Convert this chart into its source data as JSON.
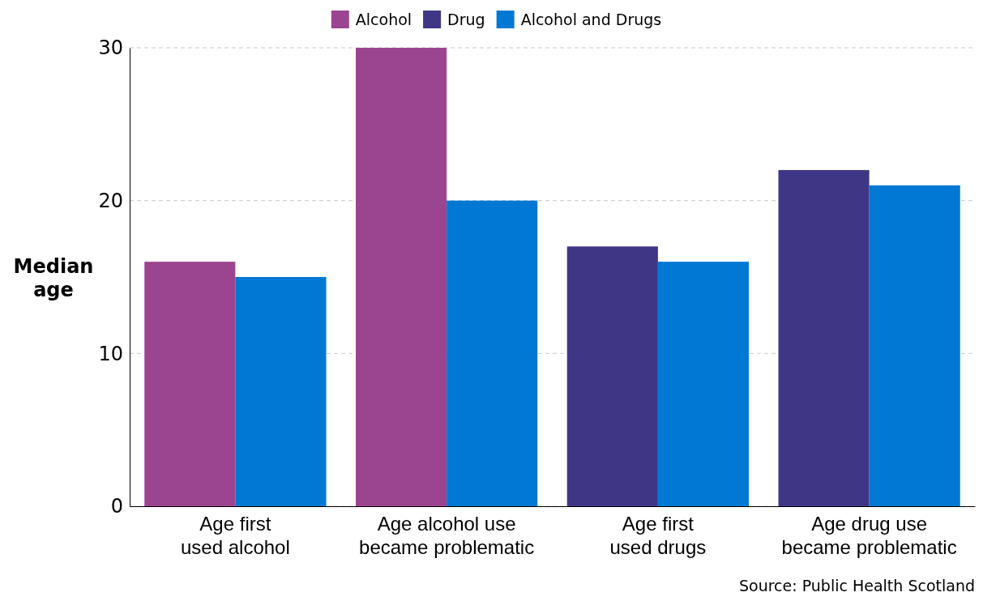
{
  "chart_data": {
    "type": "bar",
    "categories": [
      "Age first used alcohol",
      "Age alcohol use became problematic",
      "Age first used drugs",
      "Age drug use became problematic"
    ],
    "series": [
      {
        "name": "Alcohol",
        "color": "#9b4590",
        "values": [
          16,
          30,
          null,
          null
        ]
      },
      {
        "name": "Drug",
        "color": "#3f3685",
        "values": [
          null,
          null,
          17,
          22
        ]
      },
      {
        "name": "Alcohol and Drugs",
        "color": "#0078d4",
        "values": [
          15,
          20,
          16,
          21
        ]
      }
    ],
    "ylabel": "Median age",
    "ylim": [
      0,
      30
    ],
    "yticks": [
      0,
      10,
      20,
      30
    ],
    "grid": "y",
    "legend": "top",
    "annotations": [
      "Source: Public Health Scotland"
    ]
  }
}
